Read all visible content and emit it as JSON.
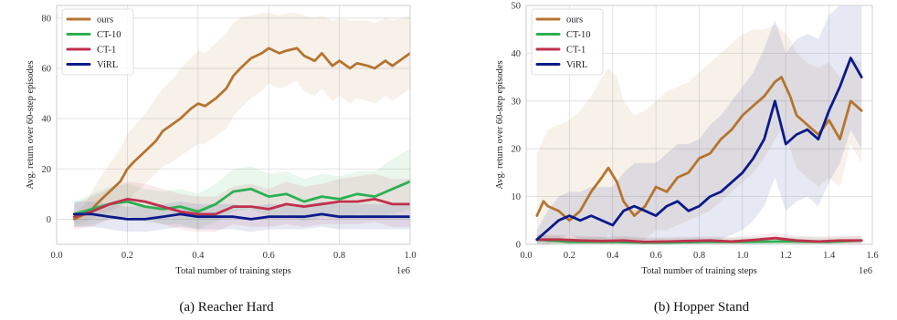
{
  "chart_data": [
    {
      "type": "line",
      "caption": "(a) Reacher Hard",
      "xlabel": "Total number of training steps",
      "ylabel": "Avg. return over 60-step episodes",
      "x_multiplier_label": "1e6",
      "xlim": [
        0.0,
        1.0
      ],
      "ylim": [
        -10,
        85
      ],
      "xticks": [
        0.0,
        0.2,
        0.4,
        0.6,
        0.8,
        1.0
      ],
      "xtick_labels": [
        "0.0",
        "0.2",
        "0.4",
        "0.6",
        "0.8",
        "1.0"
      ],
      "yticks": [
        0,
        20,
        40,
        60,
        80
      ],
      "ytick_labels": [
        "0",
        "20",
        "40",
        "60",
        "80"
      ],
      "grid": true,
      "legend_position": "top-left",
      "series": [
        {
          "name": "ours",
          "color": "#b5742f",
          "x": [
            0.05,
            0.08,
            0.1,
            0.12,
            0.15,
            0.18,
            0.2,
            0.22,
            0.25,
            0.28,
            0.3,
            0.33,
            0.35,
            0.38,
            0.4,
            0.42,
            0.45,
            0.48,
            0.5,
            0.52,
            0.55,
            0.58,
            0.6,
            0.63,
            0.65,
            0.68,
            0.7,
            0.73,
            0.75,
            0.78,
            0.8,
            0.83,
            0.85,
            0.88,
            0.9,
            0.93,
            0.95,
            0.98,
            1.0
          ],
          "y": [
            0,
            2,
            4,
            7,
            11,
            15,
            20,
            23,
            27,
            31,
            35,
            38,
            40,
            44,
            46,
            45,
            48,
            52,
            57,
            60,
            64,
            66,
            68,
            66,
            67,
            68,
            65,
            63,
            66,
            61,
            63,
            60,
            62,
            61,
            60,
            63,
            61,
            64,
            66
          ],
          "upper": [
            2,
            6,
            11,
            16,
            22,
            28,
            34,
            37,
            42,
            48,
            52,
            56,
            60,
            64,
            67,
            66,
            70,
            74,
            78,
            80,
            81,
            82,
            82,
            81,
            82,
            82,
            81,
            80,
            81,
            79,
            80,
            79,
            79,
            79,
            78,
            80,
            79,
            80,
            81
          ],
          "lower": [
            -2,
            -1,
            0,
            1,
            3,
            5,
            7,
            10,
            14,
            18,
            21,
            23,
            25,
            28,
            30,
            30,
            33,
            36,
            41,
            44,
            48,
            51,
            54,
            52,
            53,
            55,
            51,
            49,
            52,
            47,
            49,
            46,
            48,
            47,
            46,
            49,
            47,
            50,
            52
          ]
        },
        {
          "name": "CT-10",
          "color": "#2bb052",
          "x": [
            0.05,
            0.1,
            0.15,
            0.2,
            0.25,
            0.3,
            0.35,
            0.4,
            0.45,
            0.5,
            0.55,
            0.6,
            0.65,
            0.7,
            0.75,
            0.8,
            0.85,
            0.9,
            0.95,
            1.0
          ],
          "y": [
            2,
            4,
            6,
            7,
            5,
            4,
            5,
            3,
            6,
            11,
            12,
            9,
            10,
            7,
            9,
            8,
            10,
            9,
            12,
            15
          ],
          "upper": [
            7,
            10,
            13,
            14,
            12,
            11,
            12,
            10,
            14,
            20,
            21,
            18,
            19,
            16,
            18,
            17,
            19,
            19,
            24,
            28
          ],
          "lower": [
            -3,
            -2,
            0,
            1,
            -1,
            -2,
            -2,
            -4,
            -1,
            3,
            4,
            1,
            2,
            -1,
            1,
            0,
            2,
            1,
            2,
            4
          ]
        },
        {
          "name": "CT-1",
          "color": "#c0304c",
          "x": [
            0.05,
            0.1,
            0.15,
            0.2,
            0.25,
            0.3,
            0.35,
            0.4,
            0.45,
            0.5,
            0.55,
            0.6,
            0.65,
            0.7,
            0.75,
            0.8,
            0.85,
            0.9,
            0.95,
            1.0
          ],
          "y": [
            1,
            3,
            6,
            8,
            7,
            5,
            3,
            2,
            2,
            5,
            5,
            4,
            6,
            5,
            6,
            7,
            7,
            8,
            6,
            6
          ],
          "upper": [
            6,
            9,
            12,
            15,
            14,
            12,
            10,
            9,
            9,
            13,
            14,
            12,
            15,
            13,
            14,
            16,
            17,
            18,
            16,
            16
          ],
          "lower": [
            -4,
            -3,
            0,
            1,
            0,
            -2,
            -4,
            -5,
            -5,
            -2,
            -3,
            -3,
            -2,
            -3,
            -2,
            -2,
            -2,
            -1,
            -3,
            -3
          ]
        },
        {
          "name": "ViRL",
          "color": "#0b1a8a",
          "x": [
            0.05,
            0.1,
            0.15,
            0.2,
            0.25,
            0.3,
            0.35,
            0.4,
            0.45,
            0.5,
            0.55,
            0.6,
            0.65,
            0.7,
            0.75,
            0.8,
            0.85,
            0.9,
            0.95,
            1.0
          ],
          "y": [
            2,
            2,
            1,
            0,
            0,
            1,
            2,
            1,
            1,
            1,
            0,
            1,
            1,
            1,
            2,
            1,
            1,
            1,
            1,
            1
          ],
          "upper": [
            7,
            7,
            6,
            5,
            5,
            6,
            7,
            6,
            6,
            6,
            5,
            6,
            6,
            6,
            7,
            6,
            6,
            6,
            6,
            6
          ],
          "lower": [
            -3,
            -3,
            -4,
            -5,
            -5,
            -4,
            -3,
            -4,
            -4,
            -4,
            -5,
            -4,
            -4,
            -4,
            -3,
            -4,
            -4,
            -4,
            -4,
            -4
          ]
        }
      ]
    },
    {
      "type": "line",
      "caption": "(b) Hopper Stand",
      "xlabel": "Total number of training steps",
      "ylabel": "Avg. return over 60-step episodes",
      "x_multiplier_label": "1e6",
      "xlim": [
        0.0,
        1.6
      ],
      "ylim": [
        0,
        50
      ],
      "xticks": [
        0.0,
        0.2,
        0.4,
        0.6,
        0.8,
        1.0,
        1.2,
        1.4,
        1.6
      ],
      "xtick_labels": [
        "0.0",
        "0.2",
        "0.4",
        "0.6",
        "0.8",
        "1.0",
        "1.2",
        "1.4",
        "1.6"
      ],
      "yticks": [
        0,
        10,
        20,
        30,
        40,
        50
      ],
      "ytick_labels": [
        "0",
        "10",
        "20",
        "30",
        "40",
        "50"
      ],
      "grid": true,
      "legend_position": "top-left",
      "series": [
        {
          "name": "ours",
          "color": "#b5742f",
          "x": [
            0.05,
            0.08,
            0.1,
            0.15,
            0.2,
            0.25,
            0.3,
            0.35,
            0.38,
            0.42,
            0.45,
            0.5,
            0.55,
            0.6,
            0.65,
            0.7,
            0.75,
            0.8,
            0.85,
            0.9,
            0.95,
            1.0,
            1.05,
            1.1,
            1.15,
            1.18,
            1.22,
            1.25,
            1.3,
            1.35,
            1.4,
            1.45,
            1.5,
            1.55
          ],
          "y": [
            6,
            9,
            8,
            7,
            5,
            7,
            11,
            14,
            16,
            13,
            9,
            6,
            8,
            12,
            11,
            14,
            15,
            18,
            19,
            22,
            24,
            27,
            29,
            31,
            34,
            35,
            31,
            27,
            25,
            23,
            26,
            22,
            30,
            28
          ],
          "upper": [
            19,
            22,
            24,
            25,
            26,
            28,
            31,
            35,
            37,
            35,
            30,
            27,
            28,
            30,
            32,
            33,
            34,
            36,
            38,
            40,
            42,
            44,
            45,
            45,
            46,
            45,
            43,
            40,
            38,
            37,
            38,
            35,
            39,
            38
          ],
          "lower": [
            0,
            1,
            0,
            0,
            0,
            0,
            0,
            0,
            2,
            1,
            0,
            0,
            1,
            3,
            3,
            4,
            5,
            6,
            7,
            9,
            11,
            13,
            15,
            18,
            22,
            24,
            20,
            16,
            14,
            12,
            14,
            12,
            21,
            17
          ]
        },
        {
          "name": "CT-10",
          "color": "#2bb052",
          "x": [
            0.05,
            0.2,
            0.4,
            0.6,
            0.8,
            1.0,
            1.2,
            1.4,
            1.55
          ],
          "y": [
            1,
            0.5,
            0.5,
            0.3,
            0.5,
            0.5,
            0.6,
            0.5,
            0.8
          ],
          "upper": [
            2,
            1.5,
            1.5,
            1.2,
            1.4,
            1.4,
            1.6,
            1.4,
            1.8
          ],
          "lower": [
            0,
            0,
            0,
            0,
            0,
            0,
            0,
            0,
            0
          ]
        },
        {
          "name": "CT-1",
          "color": "#c0304c",
          "x": [
            0.05,
            0.15,
            0.25,
            0.35,
            0.45,
            0.55,
            0.65,
            0.75,
            0.85,
            0.95,
            1.05,
            1.15,
            1.25,
            1.35,
            1.45,
            1.55
          ],
          "y": [
            1,
            1,
            0.8,
            0.7,
            0.8,
            0.5,
            0.6,
            0.7,
            0.8,
            0.6,
            0.9,
            1.3,
            0.8,
            0.6,
            0.8,
            0.8
          ],
          "upper": [
            2,
            2,
            1.8,
            1.6,
            1.8,
            1.4,
            1.5,
            1.6,
            1.7,
            1.5,
            1.9,
            2.3,
            1.8,
            1.6,
            1.8,
            1.8
          ],
          "lower": [
            0,
            0,
            0,
            0,
            0,
            0,
            0,
            0,
            0,
            0,
            0,
            0.3,
            0,
            0,
            0,
            0
          ]
        },
        {
          "name": "ViRL",
          "color": "#0b1a8a",
          "x": [
            0.05,
            0.1,
            0.15,
            0.2,
            0.25,
            0.3,
            0.35,
            0.4,
            0.45,
            0.5,
            0.55,
            0.6,
            0.65,
            0.7,
            0.75,
            0.8,
            0.85,
            0.9,
            0.95,
            1.0,
            1.05,
            1.1,
            1.15,
            1.2,
            1.25,
            1.3,
            1.35,
            1.4,
            1.45,
            1.5,
            1.55
          ],
          "y": [
            1,
            3,
            5,
            6,
            5,
            6,
            5,
            4,
            7,
            8,
            7,
            6,
            8,
            9,
            7,
            8,
            10,
            11,
            13,
            15,
            18,
            22,
            30,
            21,
            23,
            24,
            22,
            28,
            33,
            39,
            35
          ],
          "upper": [
            3,
            7,
            10,
            11,
            11,
            12,
            12,
            12,
            15,
            17,
            17,
            17,
            19,
            21,
            21,
            22,
            25,
            27,
            30,
            33,
            36,
            41,
            47,
            40,
            43,
            44,
            43,
            48,
            50,
            50,
            50
          ],
          "lower": [
            0,
            0,
            1,
            2,
            1,
            1,
            0,
            0,
            1,
            1,
            0,
            0,
            1,
            1,
            0,
            0,
            1,
            1,
            2,
            3,
            5,
            8,
            14,
            7,
            9,
            10,
            8,
            13,
            17,
            24,
            20
          ]
        }
      ]
    }
  ]
}
